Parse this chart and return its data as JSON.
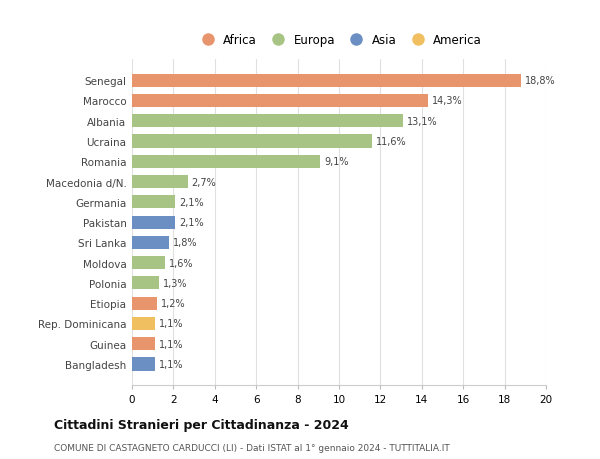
{
  "categories": [
    "Bangladesh",
    "Guinea",
    "Rep. Dominicana",
    "Etiopia",
    "Polonia",
    "Moldova",
    "Sri Lanka",
    "Pakistan",
    "Germania",
    "Macedonia d/N.",
    "Romania",
    "Ucraina",
    "Albania",
    "Marocco",
    "Senegal"
  ],
  "values": [
    1.1,
    1.1,
    1.1,
    1.2,
    1.3,
    1.6,
    1.8,
    2.1,
    2.1,
    2.7,
    9.1,
    11.6,
    13.1,
    14.3,
    18.8
  ],
  "labels": [
    "1,1%",
    "1,1%",
    "1,1%",
    "1,2%",
    "1,3%",
    "1,6%",
    "1,8%",
    "2,1%",
    "2,1%",
    "2,7%",
    "9,1%",
    "11,6%",
    "13,1%",
    "14,3%",
    "18,8%"
  ],
  "colors": [
    "#6b8fc2",
    "#e8956d",
    "#f0c060",
    "#e8956d",
    "#a8c484",
    "#a8c484",
    "#6b8fc2",
    "#6b8fc2",
    "#a8c484",
    "#a8c484",
    "#a8c484",
    "#a8c484",
    "#a8c484",
    "#e8956d",
    "#e8956d"
  ],
  "legend_labels": [
    "Africa",
    "Europa",
    "Asia",
    "America"
  ],
  "legend_colors": [
    "#e8956d",
    "#a8c484",
    "#6b8fc2",
    "#f0c060"
  ],
  "title": "Cittadini Stranieri per Cittadinanza - 2024",
  "subtitle": "COMUNE DI CASTAGNETO CARDUCCI (LI) - Dati ISTAT al 1° gennaio 2024 - TUTTITALIA.IT",
  "xlim": [
    0,
    20
  ],
  "xticks": [
    0,
    2,
    4,
    6,
    8,
    10,
    12,
    14,
    16,
    18,
    20
  ],
  "bar_height": 0.65,
  "background_color": "#ffffff",
  "grid_color": "#e0e0e0"
}
